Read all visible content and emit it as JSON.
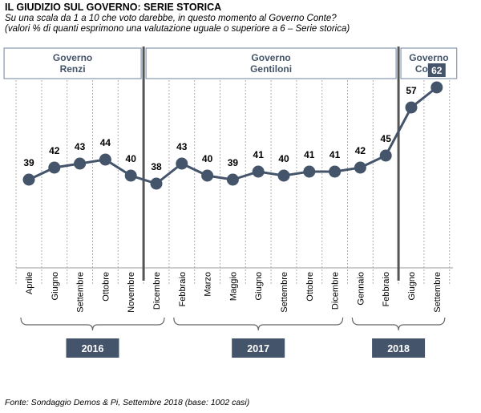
{
  "header": {
    "title": "IL GIUDIZIO  SUL GOVERNO: SERIE STORICA",
    "subtitle_line1": "Su una scala da 1 a 10 che voto darebbe, in questo momento al Governo Conte?",
    "subtitle_line2": "(valori % di quanti esprimono una valutazione uguale o superiore a 6 – Serie storica)"
  },
  "footnote": "Fonte: Sondaggio Demos & Pi, Settembre 2018 (base: 1002 casi)",
  "colors": {
    "line": "#44546a",
    "box_border": "#8496b0",
    "box_text": "#44546a",
    "year_box": "#44546a",
    "highlight": "#44546a"
  },
  "governments": [
    {
      "line1": "Governo",
      "line2": "Renzi"
    },
    {
      "line1": "Governo",
      "line2": "Gentiloni"
    },
    {
      "line1": "Governo",
      "line2": "Conte"
    }
  ],
  "years": [
    "2016",
    "2017",
    "2018"
  ],
  "chart_data": {
    "type": "line",
    "categories": [
      "Aprile",
      "Giugno",
      "Settembre",
      "Ottobre",
      "Novembre",
      "Dicembre",
      "Febbraio",
      "Marzo",
      "Maggio",
      "Giugno",
      "Settembre",
      "Ottobre",
      "Dicembre",
      "Gennaio",
      "Febbraio",
      "Giugno",
      "Settembre"
    ],
    "values": [
      39,
      42,
      43,
      44,
      40,
      38,
      43,
      40,
      39,
      41,
      40,
      41,
      41,
      42,
      45,
      57,
      62
    ],
    "ylim": [
      0,
      100
    ],
    "grid": "vertical dashed",
    "highlight_last": true
  }
}
